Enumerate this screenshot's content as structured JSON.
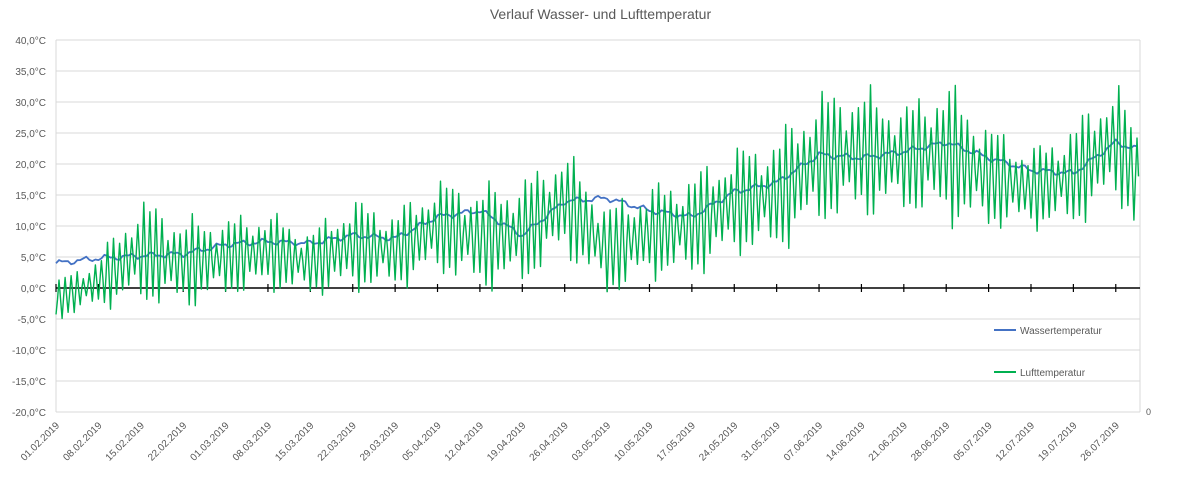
{
  "chart_data": {
    "type": "line",
    "title": "Verlauf Wasser- und Lufttemperatur",
    "xlabel": "",
    "ylabel": "",
    "ylim": [
      -20,
      40
    ],
    "y_ticks": [
      "-20,0°C",
      "-15,0°C",
      "-10,0°C",
      "-5,0°C",
      "0,0°C",
      "5,0°C",
      "10,0°C",
      "15,0°C",
      "20,0°C",
      "25,0°C",
      "30,0°C",
      "35,0°C",
      "40,0°C"
    ],
    "x_tick_labels": [
      "01.02.2019",
      "08.02.2019",
      "15.02.2019",
      "22.02.2019",
      "01.03.2019",
      "08.03.2019",
      "15.03.2019",
      "22.03.2019",
      "29.03.2019",
      "05.04.2019",
      "12.04.2019",
      "19.04.2019",
      "26.04.2019",
      "03.05.2019",
      "10.05.2019",
      "17.05.2019",
      "24.05.2019",
      "31.05.2019",
      "07.06.2019",
      "14.06.2019",
      "21.06.2019",
      "28.06.2019",
      "05.07.2019",
      "12.07.2019",
      "19.07.2019",
      "26.07.2019"
    ],
    "stray_label": "0",
    "grid": true,
    "legend_position": "right",
    "series": [
      {
        "name": "Wassertemperatur",
        "color": "#4472C4",
        "x": [
          "01.02.2019",
          "08.02.2019",
          "15.02.2019",
          "22.02.2019",
          "01.03.2019",
          "08.03.2019",
          "15.03.2019",
          "22.03.2019",
          "29.03.2019",
          "05.04.2019",
          "12.04.2019",
          "19.04.2019",
          "26.04.2019",
          "03.05.2019",
          "10.05.2019",
          "17.05.2019",
          "24.05.2019",
          "31.05.2019",
          "07.06.2019",
          "14.06.2019",
          "21.06.2019",
          "28.06.2019",
          "05.07.2019",
          "12.07.2019",
          "19.07.2019",
          "26.07.2019",
          "29.07.2019"
        ],
        "values": [
          4.0,
          4.8,
          5.2,
          5.5,
          7.0,
          7.5,
          7.2,
          8.5,
          8.0,
          11.5,
          12.5,
          8.5,
          14.0,
          14.5,
          12.5,
          11.5,
          15.5,
          17.0,
          21.5,
          21.0,
          22.0,
          23.5,
          21.0,
          19.0,
          18.5,
          23.5,
          22.5
        ]
      },
      {
        "name": "Lufttemperatur",
        "color": "#00B050",
        "x": [
          "01.02.2019",
          "08.02.2019",
          "15.02.2019",
          "22.02.2019",
          "01.03.2019",
          "08.03.2019",
          "15.03.2019",
          "22.03.2019",
          "29.03.2019",
          "05.04.2019",
          "12.04.2019",
          "19.04.2019",
          "26.04.2019",
          "03.05.2019",
          "10.05.2019",
          "17.05.2019",
          "24.05.2019",
          "31.05.2019",
          "07.06.2019",
          "14.06.2019",
          "21.06.2019",
          "28.06.2019",
          "05.07.2019",
          "12.07.2019",
          "19.07.2019",
          "26.07.2019",
          "29.07.2019"
        ],
        "values": [
          -2.0,
          1.0,
          6.0,
          4.0,
          5.0,
          6.0,
          4.0,
          7.0,
          6.0,
          10.0,
          8.0,
          9.0,
          14.0,
          6.0,
          9.0,
          10.0,
          14.0,
          15.0,
          21.0,
          22.0,
          21.0,
          22.0,
          18.0,
          16.0,
          18.0,
          24.0,
          18.0
        ],
        "daily_amplitude": [
          3,
          4,
          8,
          7,
          6,
          6,
          5,
          7,
          6,
          7,
          8,
          8,
          8,
          7,
          7,
          8,
          8,
          9,
          10,
          10,
          8,
          11,
          8,
          6,
          8,
          9,
          8
        ]
      }
    ]
  },
  "legend": {
    "items": [
      {
        "label": "Wassertemperatur",
        "color": "#4472C4"
      },
      {
        "label": "Lufttemperatur",
        "color": "#00B050"
      }
    ]
  }
}
